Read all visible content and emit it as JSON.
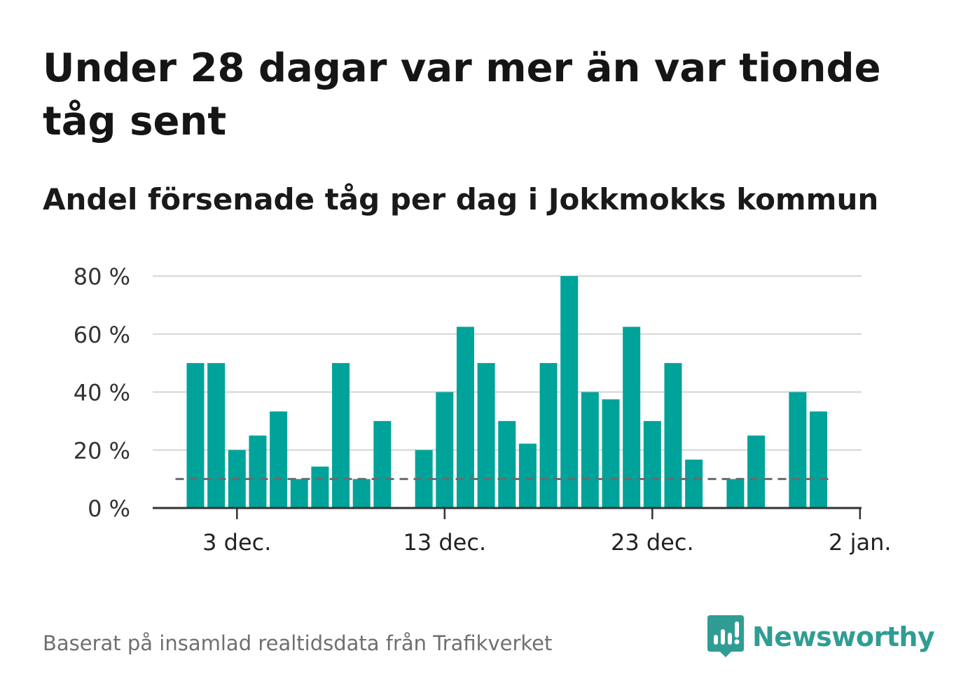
{
  "header": {
    "title": "Under 28 dagar var mer än var tionde tåg sent",
    "subtitle": "Andel försenade tåg per dag i Jokkmokks kommun"
  },
  "footer": {
    "source": "Baserat på insamlad realtidsdata från Trafikverket",
    "brand": "Newsworthy"
  },
  "colors": {
    "bar": "#00a39a",
    "reference_line": "#6b6b6b",
    "grid": "#dcdcdc",
    "axis": "#333333",
    "brand": "#2f9d93"
  },
  "chart_data": {
    "type": "bar",
    "title": "Under 28 dagar var mer än var tionde tåg sent",
    "subtitle": "Andel försenade tåg per dag i Jokkmokks kommun",
    "x": [
      "2018-12-01",
      "2018-12-02",
      "2018-12-03",
      "2018-12-04",
      "2018-12-05",
      "2018-12-06",
      "2018-12-07",
      "2018-12-08",
      "2018-12-09",
      "2018-12-10",
      "2018-12-11",
      "2018-12-12",
      "2018-12-13",
      "2018-12-14",
      "2018-12-15",
      "2018-12-16",
      "2018-12-17",
      "2018-12-18",
      "2018-12-19",
      "2018-12-20",
      "2018-12-21",
      "2018-12-22",
      "2018-12-23",
      "2018-12-24",
      "2018-12-25",
      "2018-12-26",
      "2018-12-27",
      "2018-12-28",
      "2018-12-29",
      "2018-12-30",
      "2018-12-31",
      "2019-01-01"
    ],
    "values": [
      50,
      50,
      20,
      25,
      33.3,
      10,
      14.3,
      50,
      10,
      30,
      0,
      20,
      40,
      62.5,
      50,
      30,
      22.2,
      50,
      80,
      40,
      37.5,
      62.5,
      30,
      50,
      16.7,
      0,
      10,
      25,
      0,
      40,
      33.3,
      0
    ],
    "unit": "%",
    "reference_line": 10,
    "xticks": [
      {
        "date": "2018-12-03",
        "label": "3 dec."
      },
      {
        "date": "2018-12-13",
        "label": "13 dec."
      },
      {
        "date": "2018-12-23",
        "label": "23 dec."
      },
      {
        "date": "2019-01-02",
        "label": "2 jan."
      }
    ],
    "yticks": [
      {
        "value": 0,
        "label": "0 %"
      },
      {
        "value": 20,
        "label": "20 %"
      },
      {
        "value": 40,
        "label": "40 %"
      },
      {
        "value": 60,
        "label": "60 %"
      },
      {
        "value": 80,
        "label": "80 %"
      }
    ],
    "ylim": [
      0,
      80
    ],
    "grid": true,
    "legend": "none"
  }
}
